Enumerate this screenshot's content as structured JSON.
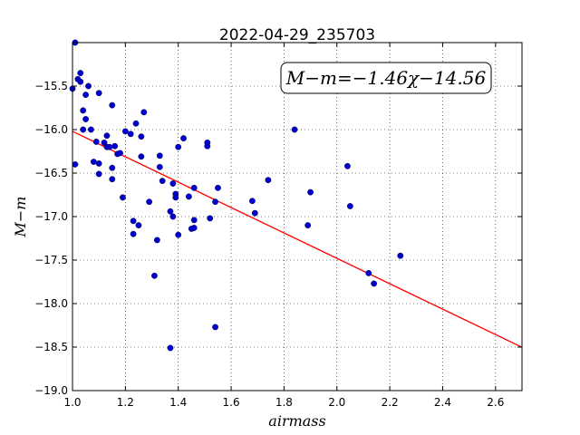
{
  "chart_data": {
    "type": "scatter",
    "title": "2022-04-29_235703",
    "xlabel": "airmass",
    "ylabel": "M−m",
    "xlim": [
      1.0,
      2.7
    ],
    "ylim": [
      -19.0,
      -15.0
    ],
    "xticks": [
      "1.0",
      "1.2",
      "1.4",
      "1.6",
      "1.8",
      "2.0",
      "2.2",
      "2.4",
      "2.6"
    ],
    "yticks": [
      "−15.5",
      "−16.0",
      "−16.5",
      "−17.0",
      "−17.5",
      "−18.0",
      "−18.5",
      "−19.0"
    ],
    "grid": true,
    "annotation": "M−m=−1.46χ−14.56",
    "fit": {
      "slope": -1.46,
      "intercept": -14.56,
      "color": "#ff0000"
    },
    "point_color": "#0000cc",
    "x": [
      1.0,
      1.01,
      1.01,
      1.02,
      1.03,
      1.03,
      1.04,
      1.04,
      1.05,
      1.05,
      1.06,
      1.07,
      1.08,
      1.09,
      1.1,
      1.1,
      1.1,
      1.12,
      1.13,
      1.13,
      1.14,
      1.15,
      1.15,
      1.15,
      1.16,
      1.17,
      1.18,
      1.19,
      1.2,
      1.22,
      1.23,
      1.23,
      1.24,
      1.25,
      1.26,
      1.26,
      1.27,
      1.29,
      1.31,
      1.32,
      1.33,
      1.33,
      1.34,
      1.37,
      1.37,
      1.38,
      1.38,
      1.39,
      1.39,
      1.4,
      1.4,
      1.42,
      1.44,
      1.45,
      1.46,
      1.46,
      1.46,
      1.51,
      1.51,
      1.52,
      1.54,
      1.54,
      1.55,
      1.68,
      1.69,
      1.74,
      1.84,
      1.89,
      1.9,
      2.04,
      2.05,
      2.12,
      2.14,
      2.24
    ],
    "y": [
      -15.53,
      -16.4,
      -15.0,
      -15.42,
      -15.35,
      -15.45,
      -15.78,
      -16.0,
      -15.6,
      -15.88,
      -15.5,
      -16.0,
      -16.37,
      -16.14,
      -15.58,
      -16.39,
      -16.51,
      -16.15,
      -16.07,
      -16.2,
      -16.2,
      -15.72,
      -16.44,
      -16.57,
      -16.19,
      -16.28,
      -16.27,
      -16.78,
      -16.02,
      -16.05,
      -17.05,
      -17.2,
      -15.93,
      -17.1,
      -16.31,
      -16.08,
      -15.8,
      -16.83,
      -17.68,
      -17.27,
      -16.3,
      -16.43,
      -16.59,
      -16.94,
      -18.51,
      -17.0,
      -16.62,
      -16.74,
      -16.78,
      -16.2,
      -17.21,
      -16.1,
      -16.77,
      -17.14,
      -16.67,
      -17.04,
      -17.13,
      -16.15,
      -16.19,
      -17.02,
      -16.83,
      -18.27,
      -16.67,
      -16.82,
      -16.96,
      -16.58,
      -16.0,
      -17.1,
      -16.72,
      -16.42,
      -16.88,
      -17.65,
      -17.77,
      -17.45
    ]
  }
}
